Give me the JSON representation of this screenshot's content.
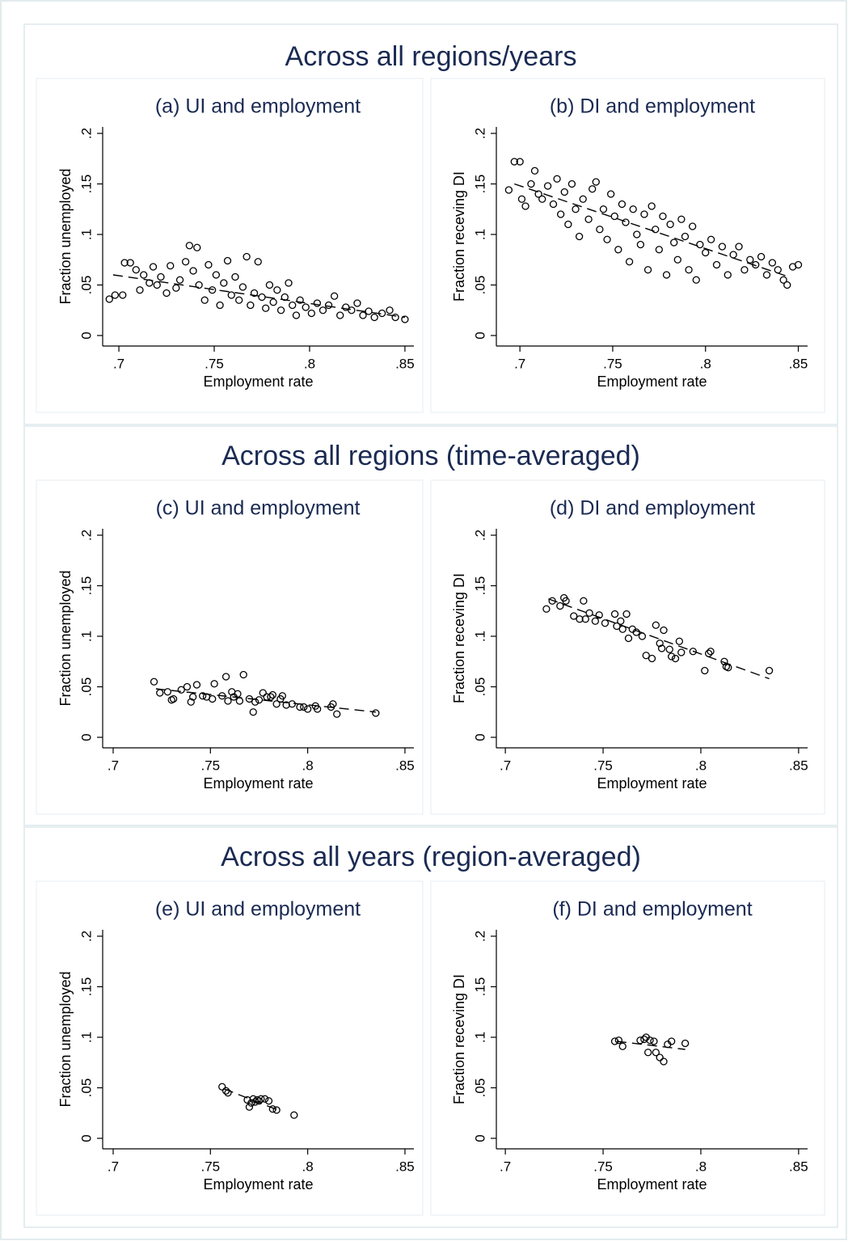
{
  "section_titles": [
    "Across all regions/years",
    "Across all regions  (time-averaged)",
    "Across all years (region-averaged)"
  ],
  "chart_data": [
    {
      "type": "scatter",
      "title": "(a) UI and employment",
      "xlabel": "Employment rate",
      "ylabel": "Fraction unemployed",
      "xlim": [
        0.6915,
        0.8547
      ],
      "ylim": [
        -0.0104,
        0.2064
      ],
      "xticks": [
        {
          "value": 0.7,
          "label": ".7"
        },
        {
          "value": 0.75,
          "label": ".75"
        },
        {
          "value": 0.8,
          "label": ".8"
        },
        {
          "value": 0.85,
          "label": ".85"
        }
      ],
      "yticks": [
        0,
        {
          "value": 0.05,
          "label": ".05"
        },
        {
          "value": 0.1,
          "label": ".1"
        },
        {
          "value": 0.15,
          "label": ".15"
        },
        {
          "value": 0.2,
          "label": ".2"
        }
      ],
      "color": "#000000",
      "x": [
        0.695,
        0.698,
        0.702,
        0.703,
        0.706,
        0.709,
        0.711,
        0.713,
        0.716,
        0.718,
        0.72,
        0.722,
        0.725,
        0.727,
        0.73,
        0.732,
        0.735,
        0.737,
        0.739,
        0.741,
        0.742,
        0.745,
        0.747,
        0.749,
        0.751,
        0.753,
        0.755,
        0.757,
        0.759,
        0.761,
        0.763,
        0.765,
        0.767,
        0.769,
        0.771,
        0.773,
        0.775,
        0.777,
        0.779,
        0.781,
        0.783,
        0.785,
        0.787,
        0.789,
        0.791,
        0.793,
        0.795,
        0.798,
        0.801,
        0.804,
        0.807,
        0.81,
        0.813,
        0.816,
        0.819,
        0.822,
        0.825,
        0.828,
        0.831,
        0.834,
        0.838,
        0.842,
        0.845,
        0.85
      ],
      "values": [
        0.036,
        0.04,
        0.04,
        0.072,
        0.072,
        0.065,
        0.045,
        0.06,
        0.052,
        0.068,
        0.05,
        0.058,
        0.042,
        0.069,
        0.047,
        0.055,
        0.073,
        0.089,
        0.064,
        0.087,
        0.05,
        0.035,
        0.07,
        0.045,
        0.06,
        0.03,
        0.052,
        0.074,
        0.04,
        0.058,
        0.035,
        0.048,
        0.078,
        0.03,
        0.042,
        0.073,
        0.038,
        0.027,
        0.05,
        0.033,
        0.045,
        0.025,
        0.038,
        0.052,
        0.03,
        0.02,
        0.035,
        0.028,
        0.022,
        0.032,
        0.025,
        0.03,
        0.039,
        0.02,
        0.028,
        0.025,
        0.032,
        0.02,
        0.024,
        0.018,
        0.022,
        0.025,
        0.018,
        0.016
      ],
      "fit": {
        "x": [
          0.697,
          0.85
        ],
        "values": [
          0.06,
          0.018
        ]
      }
    },
    {
      "type": "scatter",
      "title": "(b) DI and employment",
      "xlabel": "Employment rate",
      "ylabel": "Fraction receving DI",
      "xlim": [
        0.6873,
        0.855
      ],
      "ylim": [
        -0.0104,
        0.2064
      ],
      "xticks": [
        {
          "value": 0.7,
          "label": ".7"
        },
        {
          "value": 0.75,
          "label": ".75"
        },
        {
          "value": 0.8,
          "label": ".8"
        },
        {
          "value": 0.85,
          "label": ".85"
        }
      ],
      "yticks": [
        0,
        {
          "value": 0.05,
          "label": ".05"
        },
        {
          "value": 0.1,
          "label": ".1"
        },
        {
          "value": 0.15,
          "label": ".15"
        },
        {
          "value": 0.2,
          "label": ".2"
        }
      ],
      "color": "#000000",
      "x": [
        0.694,
        0.697,
        0.7,
        0.701,
        0.703,
        0.706,
        0.708,
        0.71,
        0.712,
        0.715,
        0.718,
        0.72,
        0.722,
        0.724,
        0.726,
        0.728,
        0.73,
        0.732,
        0.734,
        0.737,
        0.739,
        0.741,
        0.743,
        0.745,
        0.747,
        0.749,
        0.751,
        0.753,
        0.755,
        0.757,
        0.759,
        0.761,
        0.763,
        0.765,
        0.767,
        0.769,
        0.771,
        0.773,
        0.775,
        0.777,
        0.779,
        0.781,
        0.783,
        0.785,
        0.787,
        0.789,
        0.791,
        0.793,
        0.795,
        0.797,
        0.8,
        0.803,
        0.806,
        0.809,
        0.812,
        0.815,
        0.818,
        0.821,
        0.824,
        0.827,
        0.83,
        0.833,
        0.836,
        0.839,
        0.842,
        0.844,
        0.847,
        0.85
      ],
      "values": [
        0.144,
        0.172,
        0.172,
        0.135,
        0.128,
        0.15,
        0.163,
        0.14,
        0.135,
        0.148,
        0.13,
        0.155,
        0.12,
        0.142,
        0.11,
        0.15,
        0.125,
        0.098,
        0.135,
        0.115,
        0.145,
        0.152,
        0.105,
        0.125,
        0.095,
        0.14,
        0.118,
        0.085,
        0.13,
        0.112,
        0.073,
        0.125,
        0.1,
        0.09,
        0.12,
        0.065,
        0.128,
        0.105,
        0.085,
        0.118,
        0.06,
        0.11,
        0.092,
        0.075,
        0.115,
        0.098,
        0.065,
        0.108,
        0.055,
        0.09,
        0.082,
        0.095,
        0.07,
        0.088,
        0.06,
        0.08,
        0.088,
        0.065,
        0.075,
        0.07,
        0.078,
        0.06,
        0.072,
        0.065,
        0.055,
        0.05,
        0.068,
        0.07
      ],
      "fit": {
        "x": [
          0.697,
          0.845
        ],
        "values": [
          0.15,
          0.058
        ]
      }
    },
    {
      "type": "scatter",
      "title": "(c) UI and employment",
      "xlabel": "Employment rate",
      "ylabel": "Fraction unemployed",
      "xlim": [
        0.6946,
        0.8546
      ],
      "ylim": [
        -0.0104,
        0.2064
      ],
      "xticks": [
        {
          "value": 0.7,
          "label": ".7"
        },
        {
          "value": 0.75,
          "label": ".75"
        },
        {
          "value": 0.8,
          "label": ".8"
        },
        {
          "value": 0.85,
          "label": ".85"
        }
      ],
      "yticks": [
        0,
        {
          "value": 0.05,
          "label": ".05"
        },
        {
          "value": 0.1,
          "label": ".1"
        },
        {
          "value": 0.15,
          "label": ".15"
        },
        {
          "value": 0.2,
          "label": ".2"
        }
      ],
      "color": "#000000",
      "x": [
        0.721,
        0.724,
        0.728,
        0.73,
        0.731,
        0.735,
        0.738,
        0.74,
        0.741,
        0.743,
        0.746,
        0.748,
        0.751,
        0.752,
        0.756,
        0.758,
        0.759,
        0.761,
        0.762,
        0.764,
        0.765,
        0.767,
        0.77,
        0.772,
        0.773,
        0.775,
        0.777,
        0.779,
        0.781,
        0.782,
        0.784,
        0.786,
        0.787,
        0.789,
        0.792,
        0.796,
        0.798,
        0.8,
        0.804,
        0.805,
        0.812,
        0.813,
        0.815,
        0.835
      ],
      "values": [
        0.055,
        0.044,
        0.045,
        0.037,
        0.038,
        0.047,
        0.05,
        0.035,
        0.04,
        0.052,
        0.041,
        0.04,
        0.038,
        0.053,
        0.041,
        0.06,
        0.036,
        0.045,
        0.04,
        0.043,
        0.036,
        0.062,
        0.038,
        0.025,
        0.035,
        0.037,
        0.044,
        0.04,
        0.04,
        0.042,
        0.033,
        0.038,
        0.041,
        0.032,
        0.033,
        0.03,
        0.03,
        0.028,
        0.031,
        0.028,
        0.03,
        0.033,
        0.023,
        0.024
      ],
      "fit": {
        "x": [
          0.722,
          0.835
        ],
        "values": [
          0.048,
          0.025
        ]
      }
    },
    {
      "type": "scatter",
      "title": "(d) DI and employment",
      "xlabel": "Employment rate",
      "ylabel": "Fraction receving DI",
      "xlim": [
        0.6954,
        0.8546
      ],
      "ylim": [
        -0.0104,
        0.2064
      ],
      "xticks": [
        {
          "value": 0.7,
          "label": ".7"
        },
        {
          "value": 0.75,
          "label": ".75"
        },
        {
          "value": 0.8,
          "label": ".8"
        },
        {
          "value": 0.85,
          "label": ".85"
        }
      ],
      "yticks": [
        0,
        {
          "value": 0.05,
          "label": ".05"
        },
        {
          "value": 0.1,
          "label": ".1"
        },
        {
          "value": 0.15,
          "label": ".15"
        },
        {
          "value": 0.2,
          "label": ".2"
        }
      ],
      "color": "#000000",
      "x": [
        0.721,
        0.724,
        0.728,
        0.73,
        0.731,
        0.735,
        0.738,
        0.74,
        0.741,
        0.743,
        0.746,
        0.748,
        0.751,
        0.756,
        0.757,
        0.759,
        0.76,
        0.762,
        0.763,
        0.765,
        0.767,
        0.77,
        0.772,
        0.775,
        0.777,
        0.779,
        0.78,
        0.781,
        0.784,
        0.785,
        0.787,
        0.789,
        0.79,
        0.796,
        0.802,
        0.804,
        0.805,
        0.812,
        0.813,
        0.814,
        0.835
      ],
      "values": [
        0.127,
        0.135,
        0.13,
        0.138,
        0.135,
        0.12,
        0.117,
        0.135,
        0.117,
        0.123,
        0.115,
        0.121,
        0.113,
        0.122,
        0.11,
        0.115,
        0.107,
        0.122,
        0.098,
        0.107,
        0.104,
        0.1,
        0.081,
        0.078,
        0.111,
        0.093,
        0.088,
        0.106,
        0.087,
        0.08,
        0.078,
        0.095,
        0.084,
        0.085,
        0.066,
        0.083,
        0.085,
        0.075,
        0.07,
        0.069,
        0.066
      ],
      "fit": {
        "x": [
          0.722,
          0.835
        ],
        "values": [
          0.137,
          0.058
        ]
      }
    },
    {
      "type": "scatter",
      "title": "(e) UI and employment",
      "xlabel": "Employment rate",
      "ylabel": "Fraction unemployed",
      "xlim": [
        0.6946,
        0.8546
      ],
      "ylim": [
        -0.0104,
        0.2064
      ],
      "xticks": [
        {
          "value": 0.7,
          "label": ".7"
        },
        {
          "value": 0.75,
          "label": ".75"
        },
        {
          "value": 0.8,
          "label": ".8"
        },
        {
          "value": 0.85,
          "label": ".85"
        }
      ],
      "yticks": [
        0,
        {
          "value": 0.05,
          "label": ".05"
        },
        {
          "value": 0.1,
          "label": ".1"
        },
        {
          "value": 0.15,
          "label": ".15"
        },
        {
          "value": 0.2,
          "label": ".2"
        }
      ],
      "color": "#000000",
      "x": [
        0.756,
        0.758,
        0.759,
        0.769,
        0.77,
        0.771,
        0.772,
        0.773,
        0.774,
        0.775,
        0.776,
        0.778,
        0.78,
        0.782,
        0.784,
        0.793
      ],
      "values": [
        0.051,
        0.047,
        0.045,
        0.038,
        0.031,
        0.035,
        0.039,
        0.036,
        0.038,
        0.037,
        0.039,
        0.039,
        0.037,
        0.029,
        0.028,
        0.023
      ],
      "fit": {
        "x": [
          0.757,
          0.786
        ],
        "values": [
          0.049,
          0.027
        ]
      }
    },
    {
      "type": "scatter",
      "title": "(f) DI and employment",
      "xlabel": "Employment rate",
      "ylabel": "Fraction receving DI",
      "xlim": [
        0.6954,
        0.8546
      ],
      "ylim": [
        -0.0104,
        0.2064
      ],
      "xticks": [
        {
          "value": 0.7,
          "label": ".7"
        },
        {
          "value": 0.75,
          "label": ".75"
        },
        {
          "value": 0.8,
          "label": ".8"
        },
        {
          "value": 0.85,
          "label": ".85"
        }
      ],
      "yticks": [
        0,
        {
          "value": 0.05,
          "label": ".05"
        },
        {
          "value": 0.1,
          "label": ".1"
        },
        {
          "value": 0.15,
          "label": ".15"
        },
        {
          "value": 0.2,
          "label": ".2"
        }
      ],
      "color": "#000000",
      "x": [
        0.756,
        0.758,
        0.76,
        0.769,
        0.771,
        0.772,
        0.773,
        0.774,
        0.776,
        0.777,
        0.779,
        0.781,
        0.783,
        0.785,
        0.792
      ],
      "values": [
        0.096,
        0.097,
        0.091,
        0.097,
        0.098,
        0.1,
        0.085,
        0.097,
        0.096,
        0.085,
        0.08,
        0.076,
        0.093,
        0.096,
        0.094
      ],
      "fit": {
        "x": [
          0.757,
          0.792
        ],
        "values": [
          0.096,
          0.088
        ]
      }
    }
  ]
}
